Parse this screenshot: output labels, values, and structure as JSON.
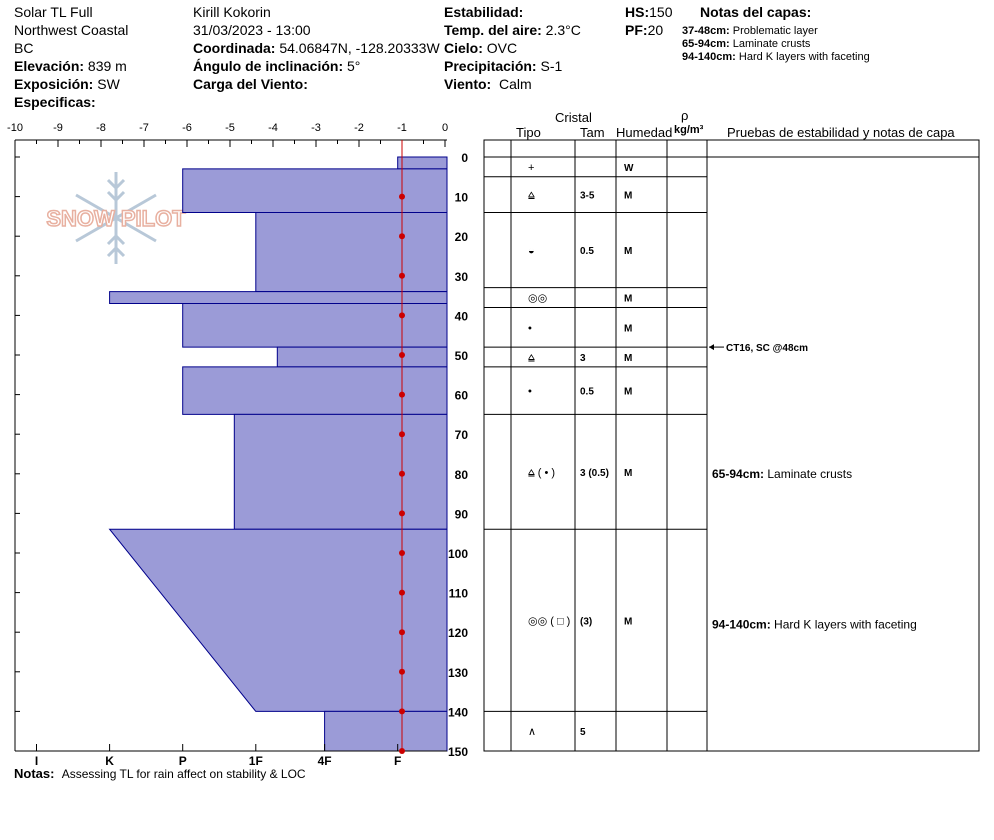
{
  "header": {
    "site_name": "Solar TL Full",
    "region": "Northwest Coastal",
    "province": "BC",
    "elevation_label": "Elevación:",
    "elevation_value": "839 m",
    "aspect_label": "Exposición:",
    "aspect_value": "SW",
    "specifics_label": "Especificas:",
    "observer": "Kirill Kokorin",
    "datetime": "31/03/2023 - 13:00",
    "coord_label": "Coordinada:",
    "coord_value": "54.06847N, -128.20333W",
    "slope_label": "Ángulo de inclinación:",
    "slope_value": "5°",
    "wind_load_label": "Carga del Viento:",
    "stability_label": "Estabilidad:",
    "air_temp_label": "Temp. del aire:",
    "air_temp_value": "2.3°C",
    "sky_label": "Cielo:",
    "sky_value": "OVC",
    "precip_label": "Precipitación:",
    "precip_value": "S-1",
    "wind_label": "Viento:",
    "wind_value": "Calm",
    "hs_label": "HS:",
    "hs_value": "150",
    "pf_label": "PF:",
    "pf_value": "20",
    "layer_notes_title": "Notas del capas:",
    "layer_notes": [
      {
        "range": "37-48cm:",
        "text": "Problematic layer"
      },
      {
        "range": "65-94cm:",
        "text": "Laminate crusts"
      },
      {
        "range": "94-140cm:",
        "text": "Hard K layers with faceting"
      }
    ]
  },
  "logo": {
    "text": "SNOW PILOT"
  },
  "table_headers": {
    "crystal": "Cristal",
    "type": "Tipo",
    "size": "Tam",
    "humidity": "Humedad",
    "density_symbol": "ρ",
    "density_unit": "kg/m³",
    "tests": "Pruebas de estabilidad y notas de capa"
  },
  "notes": {
    "label": "Notas:",
    "text": "Assessing TL for rain affect on stability & LOC"
  },
  "colors": {
    "hardness_fill": "#9b9bd7",
    "hardness_stroke": "#00008b",
    "temp_line": "#cc0000",
    "logo": "#e8b0a0"
  },
  "chart_data": {
    "type": "snow_profile",
    "x_top_ticks": [
      "-10",
      "-9",
      "-8",
      "-7",
      "-6",
      "-5",
      "-4",
      "-3",
      "-2",
      "-1",
      "0"
    ],
    "x_top_range": [
      -10,
      0
    ],
    "hardness_ticks": [
      "I",
      "K",
      "P",
      "1F",
      "4F",
      "F"
    ],
    "depth_ticks": [
      "0",
      "10",
      "20",
      "30",
      "40",
      "50",
      "60",
      "70",
      "80",
      "90",
      "100",
      "110",
      "120",
      "130",
      "140",
      "150"
    ],
    "depth_range": [
      0,
      150
    ],
    "hardness_layers": [
      {
        "top": 0,
        "bottom": 3,
        "value": -1.1
      },
      {
        "top": 3,
        "bottom": 14,
        "value": -6.1
      },
      {
        "top": 14,
        "bottom": 34,
        "value": -4.4
      },
      {
        "top": 34,
        "bottom": 37,
        "value": -7.8
      },
      {
        "top": 37,
        "bottom": 48,
        "value": -6.1
      },
      {
        "top": 48,
        "bottom": 53,
        "value": -3.9
      },
      {
        "top": 53,
        "bottom": 65,
        "value": -6.1
      },
      {
        "top": 65,
        "bottom": 94,
        "value": -4.9
      },
      {
        "top": 94,
        "bottom": 140,
        "value_top": -7.8,
        "value_bottom": -4.4
      },
      {
        "top": 140,
        "bottom": 150,
        "value": -2.8
      }
    ],
    "temperature_profile": [
      {
        "depth": 10,
        "temp": -1.0
      },
      {
        "depth": 20,
        "temp": -1.0
      },
      {
        "depth": 30,
        "temp": -1.0
      },
      {
        "depth": 40,
        "temp": -1.0
      },
      {
        "depth": 50,
        "temp": -1.0
      },
      {
        "depth": 60,
        "temp": -1.0
      },
      {
        "depth": 70,
        "temp": -1.0
      },
      {
        "depth": 80,
        "temp": -1.0
      },
      {
        "depth": 90,
        "temp": -1.0
      },
      {
        "depth": 100,
        "temp": -1.0
      },
      {
        "depth": 110,
        "temp": -1.0
      },
      {
        "depth": 120,
        "temp": -1.0
      },
      {
        "depth": 130,
        "temp": -1.0
      },
      {
        "depth": 140,
        "temp": -1.0
      },
      {
        "depth": 150,
        "temp": -1.0
      }
    ],
    "layers": [
      {
        "top": 0,
        "bottom": 5,
        "grain": "+",
        "size": "",
        "humidity": "W"
      },
      {
        "top": 5,
        "bottom": 14,
        "grain": "⩠",
        "size": "3-5",
        "humidity": "M"
      },
      {
        "top": 14,
        "bottom": 33,
        "grain": "◒",
        "size": "0.5",
        "humidity": "M"
      },
      {
        "top": 33,
        "bottom": 38,
        "grain": "◎◎",
        "size": "",
        "humidity": "M"
      },
      {
        "top": 38,
        "bottom": 48,
        "grain": "•",
        "size": "",
        "humidity": "M"
      },
      {
        "top": 48,
        "bottom": 53,
        "grain": "⩠",
        "size": "3",
        "humidity": "M"
      },
      {
        "top": 53,
        "bottom": 65,
        "grain": "•",
        "size": "0.5",
        "humidity": "M"
      },
      {
        "top": 65,
        "bottom": 94,
        "grain": "⩠ ( • )",
        "size": "3 (0.5)",
        "humidity": "M"
      },
      {
        "top": 94,
        "bottom": 140,
        "grain": "◎◎ ( □ )",
        "size": "(3)",
        "humidity": "M"
      },
      {
        "top": 140,
        "bottom": 150,
        "grain": "∧",
        "size": "5",
        "humidity": ""
      }
    ],
    "stability_tests": [
      {
        "depth": 48,
        "text": "CT16, SC @48cm"
      }
    ],
    "layer_comments": [
      {
        "depth": 80,
        "range": "65-94cm:",
        "text": "Laminate crusts"
      },
      {
        "depth": 118,
        "range": "94-140cm:",
        "text": "Hard K layers with faceting"
      }
    ]
  }
}
